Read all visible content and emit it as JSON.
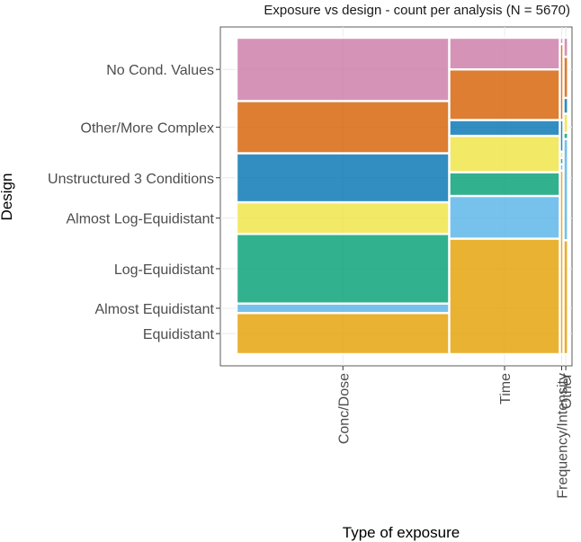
{
  "chart_data": {
    "type": "mosaic",
    "title": "Exposure vs design - count per analysis (N = 5670)",
    "xlabel": "Type of exposure",
    "ylabel": "Design",
    "x_categories": [
      "Conc/Dose",
      "Time",
      "Frequency/Intensity",
      "Other"
    ],
    "x_shares": [
      0.648,
      0.337,
      0.011,
      0.014
    ],
    "y_categories": [
      "No Cond. Values",
      "Other/More Complex",
      "Unstructured 3 Conditions",
      "Almost Log-Equidistant",
      "Log-Equidistant",
      "Almost Equidistant",
      "Equidistant"
    ],
    "colors": {
      "No Cond. Values": "#CC79A7",
      "Other/More Complex": "#D55E00",
      "Unstructured 3 Conditions": "#0072B2",
      "Almost Log-Equidistant": "#F0E442",
      "Log-Equidistant": "#009E73",
      "Almost Equidistant": "#56B4E9",
      "Equidistant": "#E69F00"
    },
    "column_shares": {
      "Conc/Dose": {
        "No Cond. Values": 0.2,
        "Other/More Complex": 0.165,
        "Unstructured 3 Conditions": 0.155,
        "Almost Log-Equidistant": 0.1,
        "Log-Equidistant": 0.22,
        "Almost Equidistant": 0.03,
        "Equidistant": 0.13
      },
      "Time": {
        "No Cond. Values": 0.1,
        "Other/More Complex": 0.16,
        "Unstructured 3 Conditions": 0.05,
        "Almost Log-Equidistant": 0.115,
        "Log-Equidistant": 0.075,
        "Almost Equidistant": 0.135,
        "Equidistant": 0.365
      },
      "Frequency/Intensity": {
        "No Cond. Values": 0.02,
        "Other/More Complex": 0.24,
        "Unstructured 3 Conditions": 0.1,
        "Almost Log-Equidistant": 0.02,
        "Log-Equidistant": 0.02,
        "Almost Equidistant": 0.02,
        "Equidistant": 0.58
      },
      "Other": {
        "No Cond. Values": 0.06,
        "Other/More Complex": 0.13,
        "Unstructured 3 Conditions": 0.05,
        "Almost Log-Equidistant": 0.06,
        "Log-Equidistant": 0.02,
        "Almost Equidistant": 0.32,
        "Equidistant": 0.36
      }
    }
  }
}
